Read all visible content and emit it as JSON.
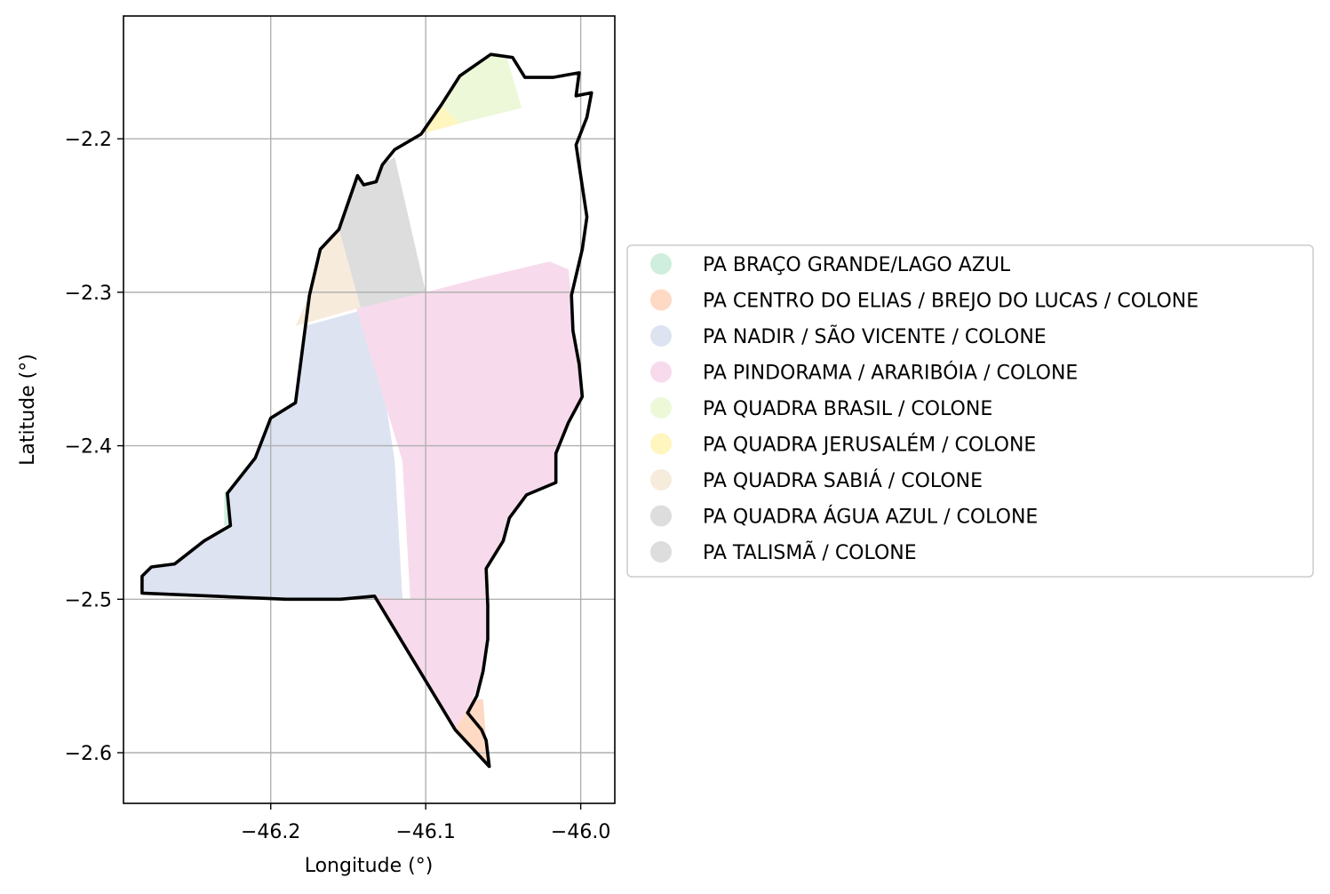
{
  "chart_data": {
    "type": "map",
    "title": "",
    "xlabel": "Longitude (°)",
    "ylabel": "Latitude (°)",
    "xlim": [
      -46.295,
      -45.978
    ],
    "ylim": [
      -2.633,
      -2.12
    ],
    "grid": true,
    "x_ticks": [
      {
        "value": -46.2,
        "label": "−46.2"
      },
      {
        "value": -46.1,
        "label": "−46.1"
      },
      {
        "value": -46.0,
        "label": "−46.0"
      }
    ],
    "y_ticks": [
      {
        "value": -2.2,
        "label": "−2.2"
      },
      {
        "value": -2.3,
        "label": "−2.3"
      },
      {
        "value": -2.4,
        "label": "−2.4"
      },
      {
        "value": -2.5,
        "label": "−2.5"
      },
      {
        "value": -2.6,
        "label": "−2.6"
      }
    ],
    "legend_position": "center-left outside",
    "boundary_color": "#000000",
    "boundary": [
      [
        -46.283,
        -2.485
      ],
      [
        -46.277,
        -2.479
      ],
      [
        -46.262,
        -2.477
      ],
      [
        -46.243,
        -2.462
      ],
      [
        -46.226,
        -2.452
      ],
      [
        -46.228,
        -2.431
      ],
      [
        -46.21,
        -2.408
      ],
      [
        -46.2,
        -2.382
      ],
      [
        -46.184,
        -2.372
      ],
      [
        -46.175,
        -2.302
      ],
      [
        -46.168,
        -2.272
      ],
      [
        -46.156,
        -2.259
      ],
      [
        -46.144,
        -2.224
      ],
      [
        -46.14,
        -2.23
      ],
      [
        -46.132,
        -2.228
      ],
      [
        -46.128,
        -2.217
      ],
      [
        -46.12,
        -2.207
      ],
      [
        -46.103,
        -2.197
      ],
      [
        -46.09,
        -2.178
      ],
      [
        -46.078,
        -2.159
      ],
      [
        -46.058,
        -2.145
      ],
      [
        -46.044,
        -2.147
      ],
      [
        -46.036,
        -2.16
      ],
      [
        -46.018,
        -2.16
      ],
      [
        -46.001,
        -2.157
      ],
      [
        -46.003,
        -2.172
      ],
      [
        -45.993,
        -2.17
      ],
      [
        -45.996,
        -2.186
      ],
      [
        -46.003,
        -2.204
      ],
      [
        -45.999,
        -2.231
      ],
      [
        -45.996,
        -2.251
      ],
      [
        -45.999,
        -2.272
      ],
      [
        -46.006,
        -2.302
      ],
      [
        -46.005,
        -2.325
      ],
      [
        -46.001,
        -2.347
      ],
      [
        -45.999,
        -2.368
      ],
      [
        -46.008,
        -2.385
      ],
      [
        -46.016,
        -2.405
      ],
      [
        -46.016,
        -2.424
      ],
      [
        -46.035,
        -2.432
      ],
      [
        -46.046,
        -2.447
      ],
      [
        -46.05,
        -2.462
      ],
      [
        -46.061,
        -2.48
      ],
      [
        -46.06,
        -2.504
      ],
      [
        -46.06,
        -2.526
      ],
      [
        -46.063,
        -2.547
      ],
      [
        -46.067,
        -2.563
      ],
      [
        -46.073,
        -2.574
      ],
      [
        -46.064,
        -2.585
      ],
      [
        -46.061,
        -2.592
      ],
      [
        -46.059,
        -2.609
      ],
      [
        -46.081,
        -2.585
      ],
      [
        -46.133,
        -2.498
      ],
      [
        -46.155,
        -2.5
      ],
      [
        -46.19,
        -2.5
      ],
      [
        -46.283,
        -2.496
      ]
    ],
    "regions": [
      {
        "name": "PA BRAÇO GRANDE/LAGO AZUL",
        "color": "#cfeedd",
        "polygon": [
          [
            -46.23,
            -2.43
          ],
          [
            -46.218,
            -2.43
          ],
          [
            -46.217,
            -2.452
          ],
          [
            -46.23,
            -2.452
          ]
        ]
      },
      {
        "name": "PA CENTRO DO ELIAS / BREJO DO LUCAS / COLONE",
        "color": "#fed9c4",
        "polygon": [
          [
            -46.07,
            -2.566
          ],
          [
            -46.063,
            -2.565
          ],
          [
            -46.061,
            -2.592
          ],
          [
            -46.059,
            -2.609
          ],
          [
            -46.081,
            -2.585
          ]
        ]
      },
      {
        "name": "PA NADIR / SÃO VICENTE / COLONE",
        "color": "#dee3f1",
        "polygon": [
          [
            -46.284,
            -2.485
          ],
          [
            -46.277,
            -2.479
          ],
          [
            -46.262,
            -2.477
          ],
          [
            -46.243,
            -2.462
          ],
          [
            -46.226,
            -2.452
          ],
          [
            -46.228,
            -2.431
          ],
          [
            -46.21,
            -2.408
          ],
          [
            -46.2,
            -2.382
          ],
          [
            -46.184,
            -2.372
          ],
          [
            -46.178,
            -2.322
          ],
          [
            -46.135,
            -2.31
          ],
          [
            -46.12,
            -2.41
          ],
          [
            -46.115,
            -2.5
          ],
          [
            -46.155,
            -2.5
          ],
          [
            -46.19,
            -2.5
          ],
          [
            -46.283,
            -2.496
          ]
        ]
      },
      {
        "name": "PA PINDORAMA / ARARIBÓIA / COLONE",
        "color": "#f7dbed",
        "polygon": [
          [
            -46.145,
            -2.31
          ],
          [
            -46.1,
            -2.3
          ],
          [
            -46.062,
            -2.29
          ],
          [
            -46.02,
            -2.28
          ],
          [
            -46.008,
            -2.285
          ],
          [
            -46.006,
            -2.302
          ],
          [
            -46.005,
            -2.325
          ],
          [
            -46.001,
            -2.347
          ],
          [
            -45.999,
            -2.368
          ],
          [
            -46.008,
            -2.385
          ],
          [
            -46.016,
            -2.405
          ],
          [
            -46.016,
            -2.424
          ],
          [
            -46.035,
            -2.432
          ],
          [
            -46.046,
            -2.447
          ],
          [
            -46.05,
            -2.462
          ],
          [
            -46.061,
            -2.48
          ],
          [
            -46.06,
            -2.504
          ],
          [
            -46.06,
            -2.526
          ],
          [
            -46.063,
            -2.547
          ],
          [
            -46.07,
            -2.566
          ],
          [
            -46.081,
            -2.585
          ],
          [
            -46.133,
            -2.498
          ],
          [
            -46.11,
            -2.5
          ],
          [
            -46.115,
            -2.41
          ]
        ]
      },
      {
        "name": "PA QUADRA BRASIL  / COLONE",
        "color": "#edf8d9",
        "polygon": [
          [
            -46.09,
            -2.178
          ],
          [
            -46.078,
            -2.159
          ],
          [
            -46.058,
            -2.145
          ],
          [
            -46.048,
            -2.146
          ],
          [
            -46.038,
            -2.18
          ],
          [
            -46.078,
            -2.19
          ]
        ]
      },
      {
        "name": "PA QUADRA JERUSALÉM / COLONE",
        "color": "#fff5bf",
        "polygon": [
          [
            -46.103,
            -2.197
          ],
          [
            -46.09,
            -2.178
          ],
          [
            -46.078,
            -2.19
          ]
        ]
      },
      {
        "name": "PA QUADRA SABIÁ / COLONE",
        "color": "#f7ecdc",
        "polygon": [
          [
            -46.184,
            -2.322
          ],
          [
            -46.175,
            -2.302
          ],
          [
            -46.168,
            -2.272
          ],
          [
            -46.156,
            -2.259
          ],
          [
            -46.142,
            -2.31
          ]
        ]
      },
      {
        "name": "PA QUADRA ÁGUA AZUL / COLONE",
        "color": "#dddddd",
        "polygon": [
          [
            -46.156,
            -2.259
          ],
          [
            -46.144,
            -2.224
          ],
          [
            -46.14,
            -2.23
          ],
          [
            -46.132,
            -2.228
          ],
          [
            -46.128,
            -2.217
          ],
          [
            -46.12,
            -2.212
          ],
          [
            -46.1,
            -2.3
          ],
          [
            -46.142,
            -2.31
          ]
        ]
      },
      {
        "name": "PA TALISMÃ / COLONE",
        "color": "#dddddd",
        "polygon": []
      }
    ]
  }
}
